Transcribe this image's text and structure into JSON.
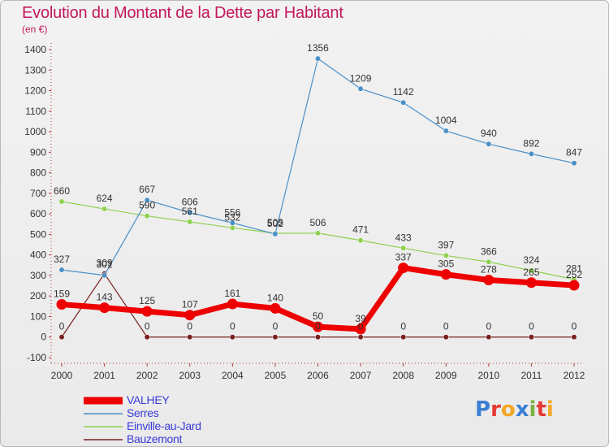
{
  "title": "Evolution du Montant de la Dette par Habitant",
  "subtitle": "(en €)",
  "logo_text": "Proxiti",
  "colors": {
    "title": "#c2185b",
    "valhey": "#ee0000",
    "serres": "#4a90c8",
    "einville": "#8fd14f",
    "bauzemont": "#7a1f1f",
    "legend_text": "#3a3adb"
  },
  "chart_data": {
    "type": "line",
    "title": "Evolution du Montant de la Dette par Habitant",
    "subtitle": "(en €)",
    "xlabel": "",
    "ylabel": "",
    "x": [
      "2000",
      "2001",
      "2002",
      "2003",
      "2004",
      "2005",
      "2006",
      "2007",
      "2008",
      "2009",
      "2010",
      "2011",
      "2012"
    ],
    "ylim": [
      -100,
      1400
    ],
    "yticks": [
      -100,
      0,
      100,
      200,
      300,
      400,
      500,
      600,
      700,
      800,
      900,
      1000,
      1100,
      1200,
      1300,
      1400
    ],
    "legend_position": "bottom-left",
    "grid": false,
    "series": [
      {
        "name": "VALHEY",
        "color": "#ee0000",
        "values": [
          159,
          143,
          125,
          107,
          161,
          140,
          50,
          39,
          337,
          305,
          278,
          265,
          252
        ]
      },
      {
        "name": "Serres",
        "color": "#4a90c8",
        "values": [
          327,
          301,
          667,
          606,
          556,
          502,
          1356,
          1209,
          1142,
          1004,
          940,
          892,
          847
        ]
      },
      {
        "name": "Einville-au-Jard",
        "color": "#8fd14f",
        "values": [
          660,
          624,
          590,
          561,
          532,
          505,
          506,
          471,
          433,
          397,
          366,
          324,
          281
        ]
      },
      {
        "name": "Bauzemont",
        "color": "#7a1f1f",
        "values": [
          0,
          309,
          0,
          0,
          0,
          0,
          0,
          0,
          0,
          0,
          0,
          0,
          0
        ]
      }
    ]
  }
}
